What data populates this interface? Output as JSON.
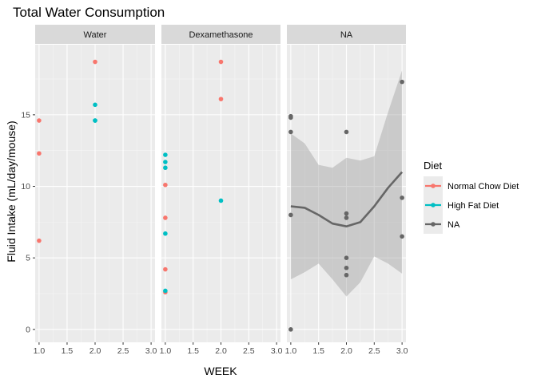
{
  "chart_data": {
    "type": "scatter",
    "title": "Total Water Consumption",
    "xlabel": "WEEK",
    "ylabel": "Fluid Intake (mL/day/mouse)",
    "xlim": [
      0.93,
      3.07
    ],
    "ylim": [
      -0.9,
      19.9
    ],
    "x_ticks": [
      1.0,
      1.5,
      2.0,
      2.5,
      3.0
    ],
    "x_tick_labels": [
      "1.0",
      "1.5",
      "2.0",
      "2.5",
      "3.0"
    ],
    "y_ticks": [
      0,
      5,
      10,
      15
    ],
    "y_tick_labels": [
      "0",
      "5",
      "10",
      "15"
    ],
    "grid": true,
    "legend": {
      "title": "Diet",
      "placement": "right",
      "entries": [
        {
          "label": "Normal Chow Diet",
          "color": "#F8766D"
        },
        {
          "label": "High Fat Diet",
          "color": "#00BFC4"
        },
        {
          "label": "NA",
          "color": "#666666"
        }
      ]
    },
    "colors": {
      "normal_chow": "#F8766D",
      "high_fat": "#00BFC4",
      "na": "#666666",
      "panel_bg": "#EBEBEB",
      "strip_bg": "#D9D9D9",
      "ribbon": "#999999"
    },
    "panels": [
      {
        "label": "Water",
        "series": [
          {
            "name": "Normal Chow Diet",
            "points": [
              [
                1,
                14.6
              ],
              [
                1,
                12.3
              ],
              [
                1,
                6.2
              ],
              [
                2,
                18.7
              ]
            ]
          },
          {
            "name": "High Fat Diet",
            "points": [
              [
                2,
                15.7
              ],
              [
                2,
                14.6
              ],
              [
                2,
                14.6
              ]
            ]
          }
        ]
      },
      {
        "label": "Dexamethasone",
        "series": [
          {
            "name": "Normal Chow Diet",
            "points": [
              [
                1,
                10.1
              ],
              [
                1,
                7.8
              ],
              [
                1,
                4.2
              ],
              [
                1,
                2.6
              ],
              [
                2,
                18.7
              ],
              [
                2,
                16.1
              ]
            ]
          },
          {
            "name": "High Fat Diet",
            "points": [
              [
                1,
                12.2
              ],
              [
                1,
                11.7
              ],
              [
                1,
                11.3
              ],
              [
                1,
                6.7
              ],
              [
                1,
                2.7
              ],
              [
                2,
                9.0
              ]
            ]
          }
        ]
      },
      {
        "label": "NA",
        "series": [
          {
            "name": "NA",
            "points": [
              [
                1,
                14.9
              ],
              [
                1,
                14.8
              ],
              [
                1,
                13.8
              ],
              [
                1,
                8.0
              ],
              [
                1,
                0.0
              ],
              [
                2,
                13.8
              ],
              [
                2,
                8.1
              ],
              [
                2,
                7.8
              ],
              [
                2,
                5.0
              ],
              [
                2,
                4.3
              ],
              [
                2,
                3.8
              ],
              [
                3,
                17.3
              ],
              [
                3,
                9.2
              ],
              [
                3,
                6.5
              ]
            ]
          }
        ],
        "smooth": {
          "x": [
            1.0,
            1.25,
            1.5,
            1.75,
            2.0,
            2.25,
            2.5,
            2.75,
            3.0
          ],
          "y": [
            8.6,
            8.5,
            8.0,
            7.4,
            7.2,
            7.5,
            8.6,
            9.9,
            11.0
          ],
          "upper": [
            13.7,
            13.0,
            11.5,
            11.3,
            12.0,
            11.8,
            12.1,
            15.2,
            18.1
          ],
          "lower": [
            3.5,
            4.0,
            4.6,
            3.5,
            2.3,
            3.3,
            5.1,
            4.6,
            3.9
          ]
        }
      }
    ]
  }
}
